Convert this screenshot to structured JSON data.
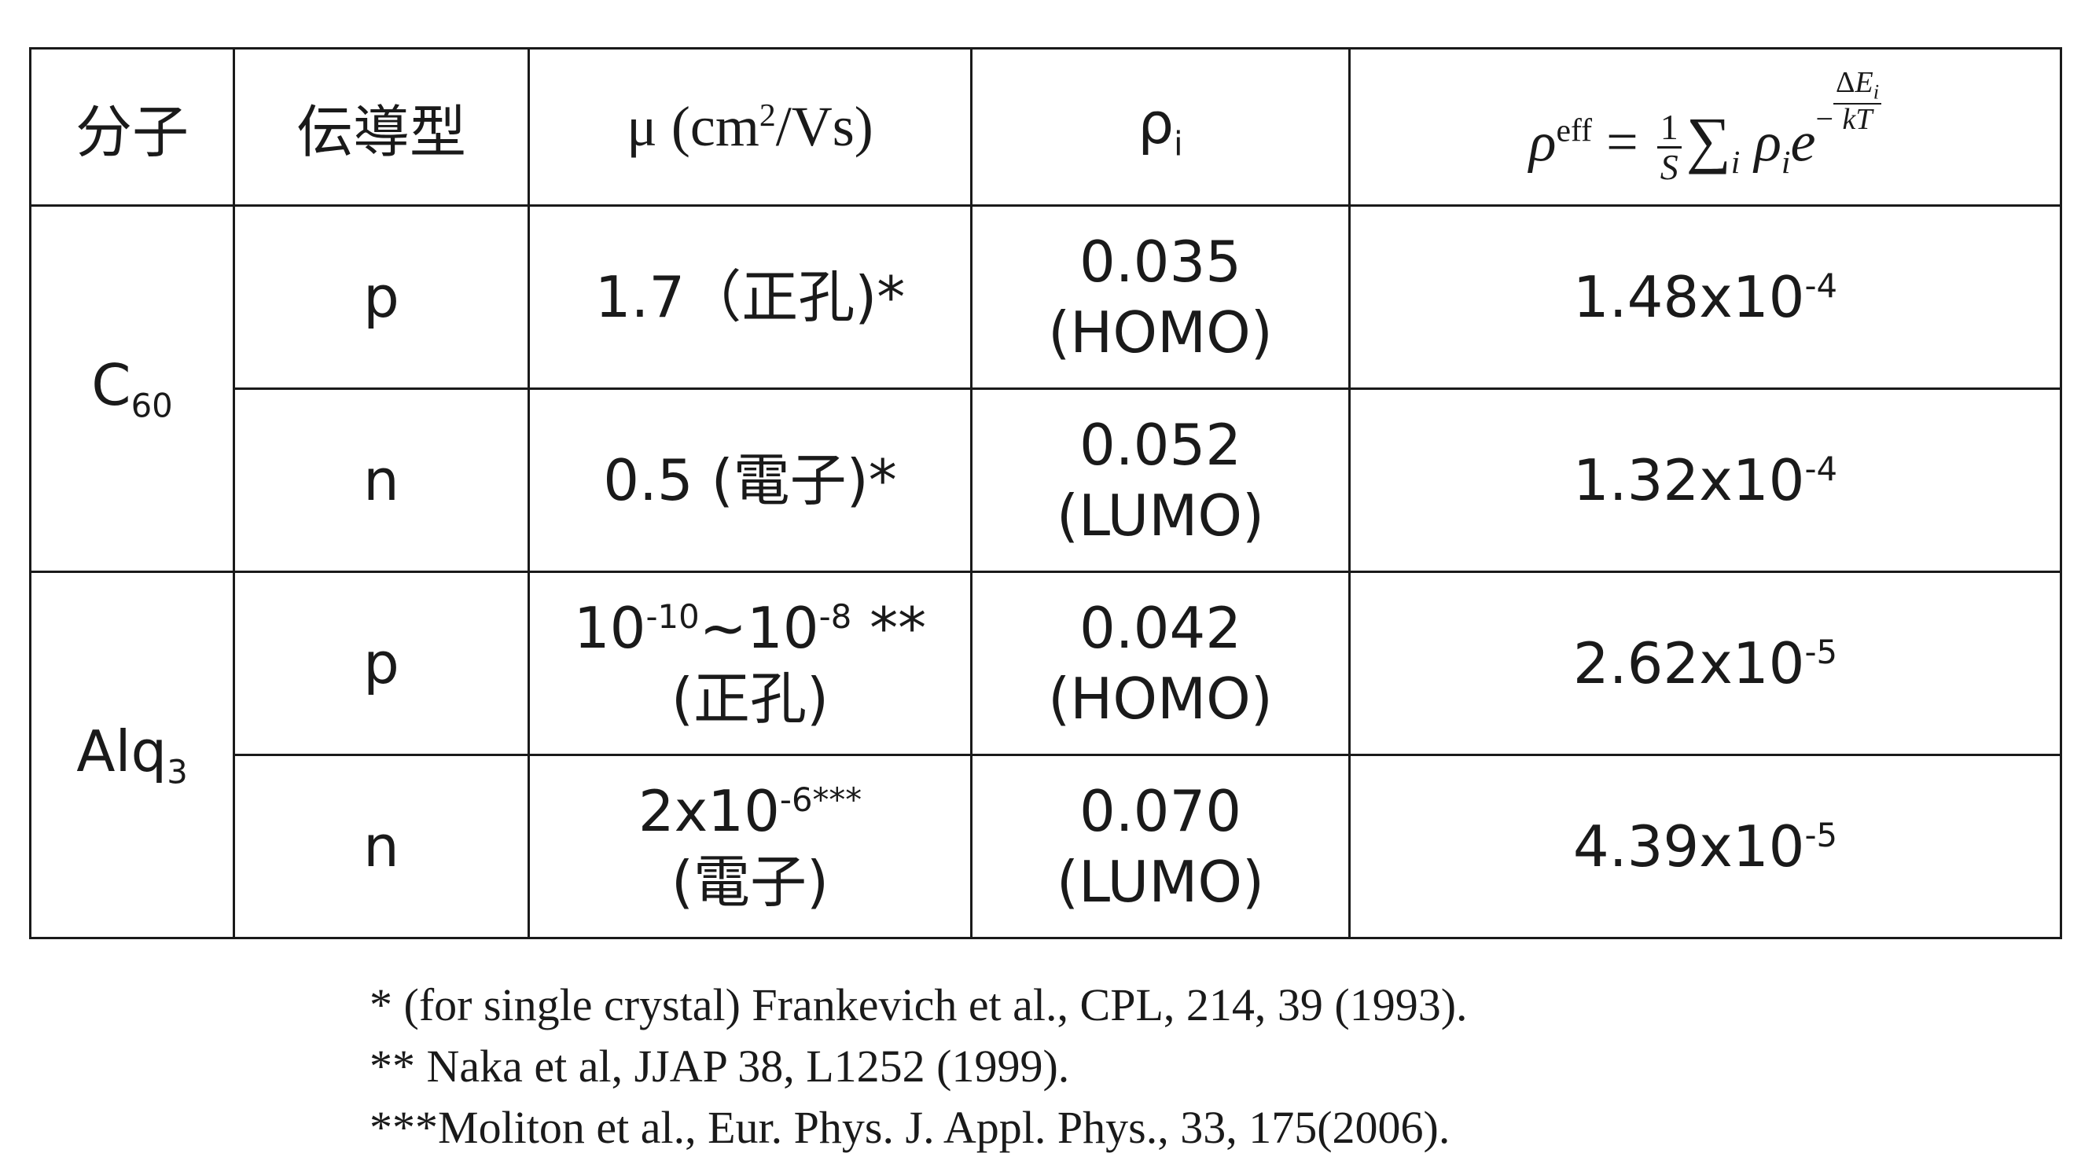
{
  "table": {
    "headers": {
      "molecule": "分子",
      "conduction_type": "伝導型",
      "mobility_prefix": "μ (cm",
      "mobility_sup": "2",
      "mobility_suffix": "/Vs)",
      "rho_i_base": "ρ",
      "rho_i_sub": "i",
      "formula": {
        "lhs_base": "ρ",
        "lhs_sup": "eff",
        "equals": "=",
        "frac_num": "1",
        "frac_den": "S",
        "sum": "∑",
        "sum_sub": "i",
        "rho": "ρ",
        "rho_sub": "i",
        "e": "e",
        "exp_sign": "−",
        "exp_num_delta": "Δ",
        "exp_num_E": "E",
        "exp_num_sub": "i",
        "exp_den": "kT"
      }
    },
    "rows": [
      {
        "molecule_base": "C",
        "molecule_sub": "60",
        "type": "p",
        "mobility_line1": "1.7（正孔)*",
        "mobility_line2": "",
        "rho_value": "0.035",
        "rho_orbital": "(HOMO)",
        "eff_base": "1.48x10",
        "eff_exp": "-4"
      },
      {
        "type": "n",
        "mobility_line1": "0.5 (電子)*",
        "mobility_line2": "",
        "rho_value": "0.052",
        "rho_orbital": "(LUMO)",
        "eff_base": "1.32x10",
        "eff_exp": "-4"
      },
      {
        "molecule_base": "Alq",
        "molecule_sub": "3",
        "type": "p",
        "mobility_a": "10",
        "mobility_a_exp": "-10",
        "mobility_tilde": "~10",
        "mobility_b_exp": "-8",
        "mobility_stars": " **",
        "mobility_line2": "(正孔)",
        "rho_value": "0.042",
        "rho_orbital": "(HOMO)",
        "eff_base": "2.62x10",
        "eff_exp": "-5"
      },
      {
        "type": "n",
        "mobility_a": "2x10",
        "mobility_a_exp": "-6***",
        "mobility_line2": "(電子)",
        "rho_value": "0.070",
        "rho_orbital": "(LUMO)",
        "eff_base": "4.39x10",
        "eff_exp": "-5"
      }
    ]
  },
  "footnotes": [
    "* (for single crystal) Frankevich et al., CPL, 214, 39 (1993).",
    "** Naka et al, JJAP 38, L1252 (1999).",
    "***Moliton et al., Eur. Phys. J. Appl. Phys., 33, 175(2006)."
  ]
}
